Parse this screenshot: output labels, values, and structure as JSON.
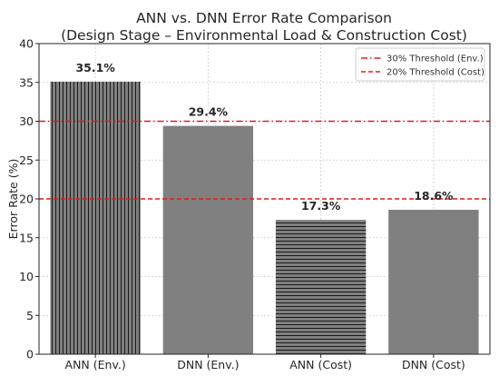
{
  "chart_data": {
    "type": "bar",
    "title_line1": "ANN vs. DNN Error Rate Comparison",
    "title_line2": "(Design Stage – Environmental Load & Construction Cost)",
    "xlabel": "",
    "ylabel": "Error Rate (%)",
    "ylim": [
      0,
      40
    ],
    "yticks": [
      0,
      5,
      10,
      15,
      20,
      25,
      30,
      35,
      40
    ],
    "grid": true,
    "legend_position": "top-right",
    "categories": [
      "ANN (Env.)",
      "DNN (Env.)",
      "ANN (Cost)",
      "DNN (Cost)"
    ],
    "values": [
      35.1,
      29.4,
      17.3,
      18.6
    ],
    "data_labels": [
      "35.1%",
      "29.4%",
      "17.3%",
      "18.6%"
    ],
    "bar_hatch": [
      "vertical",
      "none",
      "horizontal",
      "none"
    ],
    "bar_color": "#808080",
    "thresholds": [
      {
        "label": "30% Threshold (Env.)",
        "value": 30,
        "style": "dashdot",
        "color": "#e31a1c"
      },
      {
        "label": "20% Threshold (Cost)",
        "value": 20,
        "style": "dashed",
        "color": "#e31a1c"
      }
    ]
  }
}
